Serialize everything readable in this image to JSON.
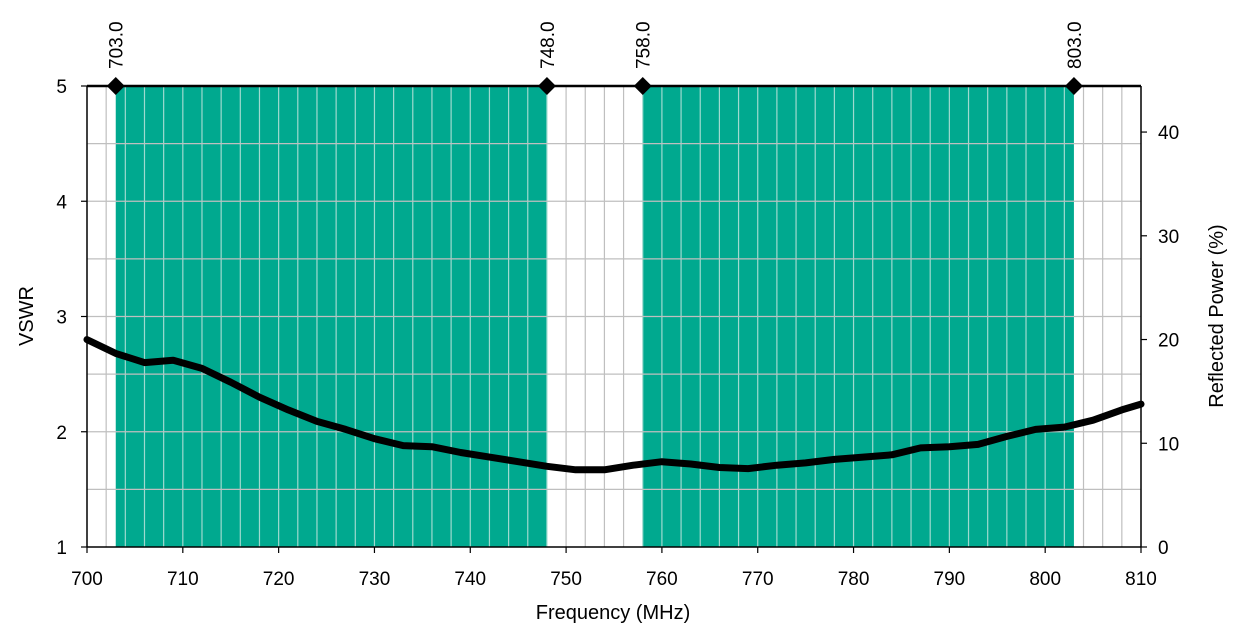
{
  "chart_data": {
    "type": "line",
    "xlabel": "Frequency (MHz)",
    "ylabel": "VSWR",
    "y2label": "Reflected Power (%)",
    "xlim": [
      700,
      810
    ],
    "ylim": [
      1,
      5
    ],
    "y2lim": [
      0,
      44.44
    ],
    "x_ticks": [
      "700",
      "710",
      "720",
      "730",
      "740",
      "750",
      "760",
      "770",
      "780",
      "790",
      "800",
      "810"
    ],
    "y_ticks": [
      "1",
      "2",
      "3",
      "4",
      "5"
    ],
    "y2_ticks": [
      "0",
      "10",
      "20",
      "30",
      "40"
    ],
    "grid": true,
    "bands": [
      {
        "start": 703,
        "end": 748
      },
      {
        "start": 758,
        "end": 803
      }
    ],
    "band_color": "#00a98f",
    "markers": [
      {
        "x": 703,
        "label": "703.0"
      },
      {
        "x": 748,
        "label": "748.0"
      },
      {
        "x": 758,
        "label": "758.0"
      },
      {
        "x": 803,
        "label": "803.0"
      }
    ],
    "series": [
      {
        "color": "#000000",
        "x": [
          700,
          703,
          706,
          709,
          712,
          715,
          718,
          721,
          724,
          727,
          730,
          733,
          736,
          739,
          742,
          745,
          748,
          751,
          754,
          757,
          760,
          763,
          766,
          769,
          772,
          775,
          778,
          781,
          784,
          787,
          790,
          793,
          796,
          799,
          802,
          805,
          808,
          810
        ],
        "y": [
          2.8,
          2.68,
          2.6,
          2.62,
          2.55,
          2.43,
          2.3,
          2.19,
          2.09,
          2.02,
          1.94,
          1.88,
          1.87,
          1.82,
          1.78,
          1.74,
          1.7,
          1.67,
          1.67,
          1.71,
          1.74,
          1.72,
          1.69,
          1.68,
          1.71,
          1.73,
          1.76,
          1.78,
          1.8,
          1.86,
          1.87,
          1.89,
          1.96,
          2.02,
          2.04,
          2.1,
          2.19,
          2.24
        ]
      }
    ]
  }
}
